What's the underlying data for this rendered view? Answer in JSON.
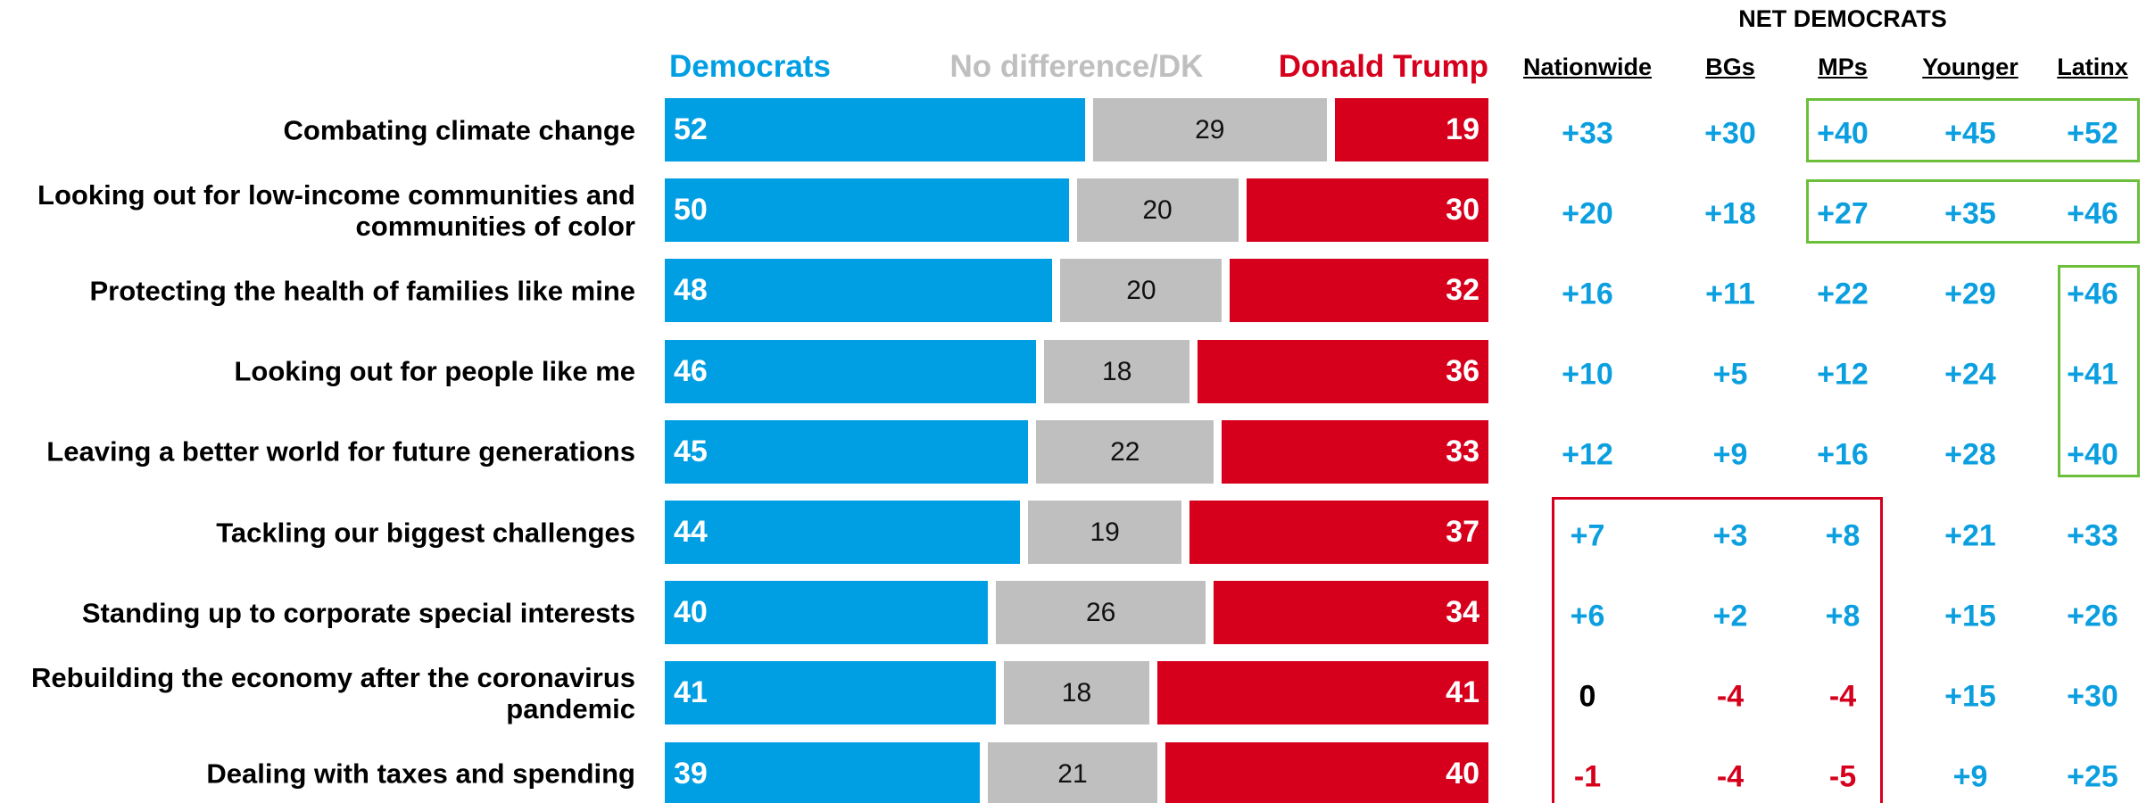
{
  "chart_data": {
    "type": "stacked_bar_horizontal",
    "categories": [
      "Combating climate change",
      "Looking out for low-income communities and communities of color",
      "Protecting the health of families like mine",
      "Looking out for people like me",
      "Leaving a better world for future generations",
      "Tackling our biggest challenges",
      "Standing up to corporate special interests",
      "Rebuilding the economy after the coronavirus pandemic",
      "Dealing with taxes and spending"
    ],
    "series": [
      {
        "name": "Democrats",
        "color": "#009fe3",
        "values": [
          52,
          50,
          48,
          46,
          45,
          44,
          40,
          41,
          39
        ]
      },
      {
        "name": "No difference/DK",
        "color": "#bfbfbf",
        "values": [
          29,
          20,
          20,
          18,
          22,
          19,
          26,
          18,
          21
        ]
      },
      {
        "name": "Donald Trump",
        "color": "#d6001c",
        "values": [
          19,
          30,
          32,
          36,
          33,
          37,
          34,
          41,
          40
        ]
      }
    ],
    "xlim": [
      0,
      100
    ]
  },
  "table": {
    "title": "NET DEMOCRATS",
    "columns": [
      "Nationwide",
      "BGs",
      "MPs",
      "Younger",
      "Latinx"
    ],
    "rows": [
      [
        "+33",
        "+30",
        "+40",
        "+45",
        "+52"
      ],
      [
        "+20",
        "+18",
        "+27",
        "+35",
        "+46"
      ],
      [
        "+16",
        "+11",
        "+22",
        "+29",
        "+46"
      ],
      [
        "+10",
        "+5",
        "+12",
        "+24",
        "+41"
      ],
      [
        "+12",
        "+9",
        "+16",
        "+28",
        "+40"
      ],
      [
        "+7",
        "+3",
        "+8",
        "+21",
        "+33"
      ],
      [
        "+6",
        "+2",
        "+8",
        "+15",
        "+26"
      ],
      [
        "0",
        "-4",
        "-4",
        "+15",
        "+30"
      ],
      [
        "-1",
        "-4",
        "-5",
        "+9",
        "+25"
      ]
    ]
  }
}
